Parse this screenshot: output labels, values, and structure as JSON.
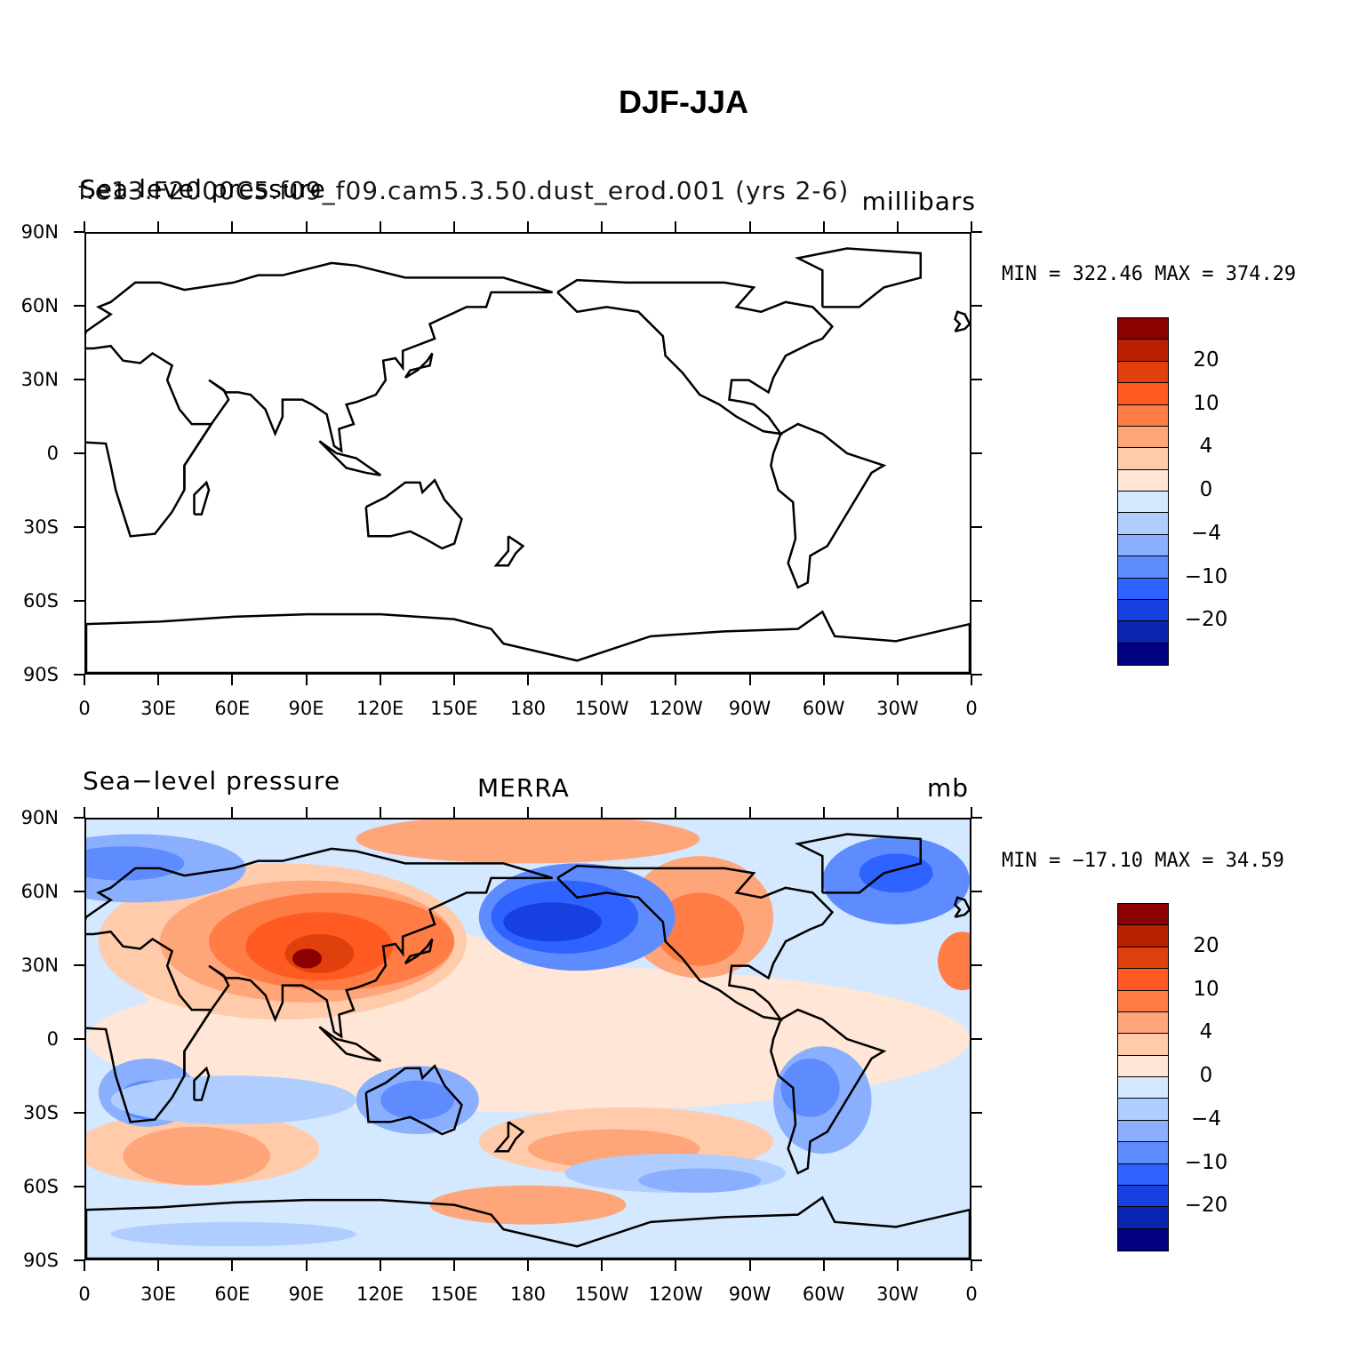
{
  "title": "DJF-JJA",
  "panels": [
    {
      "left_title": "Sea-level pressure",
      "case_title": "f.e13.F2000C5.f09_f09.cam5.3.50.dust_erod.001 (yrs 2-6)",
      "units": "millibars",
      "center_title": "",
      "stats": {
        "min_label": "MIN =",
        "min": "322.46",
        "max_label": "MAX =",
        "max": "374.29"
      }
    },
    {
      "left_title": "Sea−level pressure",
      "case_title": "",
      "units": "mb",
      "center_title": "MERRA",
      "stats": {
        "min_label": "MIN =",
        "min": "−17.10",
        "max_label": "MAX =",
        "max": " 34.59"
      }
    }
  ],
  "axes": {
    "x_ticks": [
      "0",
      "30E",
      "60E",
      "90E",
      "120E",
      "150E",
      "180",
      "150W",
      "120W",
      "90W",
      "60W",
      "30W",
      "0"
    ],
    "y_ticks": [
      "90N",
      "60N",
      "30N",
      "0",
      "30S",
      "60S",
      "90S"
    ],
    "x_range_deg": [
      0,
      360
    ],
    "y_range_deg": [
      -90,
      90
    ]
  },
  "colorbar": {
    "labels": [
      "20",
      "10",
      "4",
      "0",
      "−4",
      "−10",
      "−20"
    ],
    "colors": [
      "#8b0000",
      "#b82000",
      "#e0400c",
      "#ff5a22",
      "#ff7d45",
      "#ffa57a",
      "#ffcbaa",
      "#ffe6d6",
      "#d4e8ff",
      "#b0cdff",
      "#8aafff",
      "#5e8cff",
      "#2f63ff",
      "#1640e0",
      "#0a24b0",
      "#000080"
    ]
  },
  "chart_data": [
    {
      "type": "heatmap",
      "title": "Sea-level pressure",
      "subtitle": "f.e13.F2000C5.f09_f09.cam5.3.50.dust_erod.001 (yrs 2-6)",
      "units": "millibars",
      "xlim": [
        0,
        360
      ],
      "ylim": [
        -90,
        90
      ],
      "min": 322.46,
      "max": 374.29,
      "fill": "none (coastlines only)"
    },
    {
      "type": "heatmap",
      "title": "Sea−level pressure",
      "subtitle": "MERRA",
      "units": "mb",
      "xlim": [
        0,
        360
      ],
      "ylim": [
        -90,
        90
      ],
      "min": -17.1,
      "max": 34.59,
      "contour_levels": [
        -30,
        -25,
        -20,
        -15,
        -10,
        -6,
        -4,
        -2,
        0,
        2,
        4,
        6,
        10,
        15,
        20,
        25,
        30
      ]
    }
  ]
}
